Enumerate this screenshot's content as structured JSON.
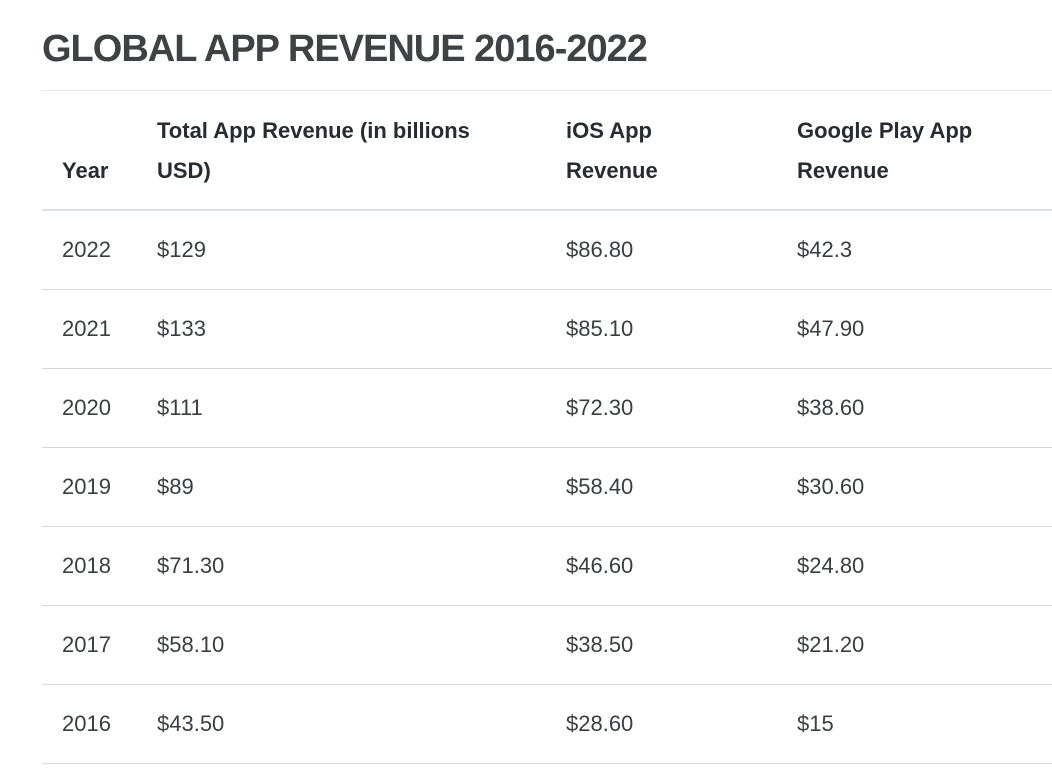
{
  "page": {
    "title": "GLOBAL APP REVENUE 2016-2022"
  },
  "table": {
    "headers": {
      "year": "Year",
      "total": "Total App Revenue (in billions USD)",
      "ios": "iOS App Revenue",
      "gplay": "Google Play App Revenue"
    },
    "rows": [
      {
        "year": "2022",
        "total": "$129",
        "ios": "$86.80",
        "gplay": "$42.3"
      },
      {
        "year": "2021",
        "total": "$133",
        "ios": "$85.10",
        "gplay": "$47.90"
      },
      {
        "year": "2020",
        "total": "$111",
        "ios": "$72.30",
        "gplay": "$38.60"
      },
      {
        "year": "2019",
        "total": "$89",
        "ios": "$58.40",
        "gplay": "$30.60"
      },
      {
        "year": "2018",
        "total": "$71.30",
        "ios": "$46.60",
        "gplay": "$24.80"
      },
      {
        "year": "2017",
        "total": "$58.10",
        "ios": "$38.50",
        "gplay": "$21.20"
      },
      {
        "year": "2016",
        "total": "$43.50",
        "ios": "$28.60",
        "gplay": "$15"
      }
    ]
  },
  "colors": {
    "title_text": "#3e4245",
    "header_text": "#272c33",
    "body_text": "#3a3e44",
    "row_divider": "#d8d8d8",
    "header_divider": "#dde0e4",
    "top_divider": "#e6e6e6",
    "background": "#ffffff"
  },
  "chart_data": {
    "type": "table",
    "title": "GLOBAL APP REVENUE 2016-2022",
    "units": "billions USD",
    "categories": [
      2022,
      2021,
      2020,
      2019,
      2018,
      2017,
      2016
    ],
    "series": [
      {
        "name": "Total App Revenue (in billions USD)",
        "values": [
          129,
          133,
          111,
          89,
          71.3,
          58.1,
          43.5
        ]
      },
      {
        "name": "iOS App Revenue",
        "values": [
          86.8,
          85.1,
          72.3,
          58.4,
          46.6,
          38.5,
          28.6
        ]
      },
      {
        "name": "Google Play App Revenue",
        "values": [
          42.3,
          47.9,
          38.6,
          30.6,
          24.8,
          21.2,
          15
        ]
      }
    ]
  }
}
